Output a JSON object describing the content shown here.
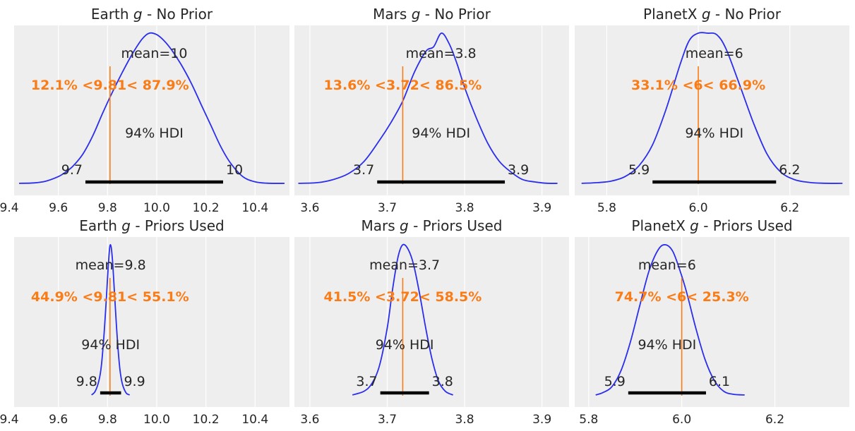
{
  "colors": {
    "kde": "#2a2eec",
    "reference": "#fa7c17",
    "hdi": "#000000",
    "panel_background": "#eeeeee"
  },
  "chart_data": [
    {
      "type": "area",
      "title": "Earth g - No Prior",
      "title_parts": {
        "planet": "Earth",
        "symbol": "g",
        "suffix": "- No Prior"
      },
      "xlim": [
        9.42,
        10.54
      ],
      "xticks": [
        9.4,
        9.6,
        9.8,
        10.0,
        10.2,
        10.4
      ],
      "xtick_labels": [
        "9.4",
        "9.6",
        "9.8",
        "10.0",
        "10.2",
        "10.4"
      ],
      "kde": {
        "x": [
          9.44,
          9.5,
          9.55,
          9.6,
          9.63,
          9.66,
          9.7,
          9.74,
          9.78,
          9.82,
          9.86,
          9.9,
          9.94,
          9.97,
          10.0,
          10.03,
          10.06,
          10.1,
          10.14,
          10.18,
          10.22,
          10.26,
          10.3,
          10.35,
          10.4,
          10.45,
          10.52
        ],
        "y": [
          0.005,
          0.008,
          0.02,
          0.05,
          0.08,
          0.12,
          0.2,
          0.32,
          0.47,
          0.61,
          0.74,
          0.86,
          0.96,
          1.0,
          0.99,
          0.95,
          0.89,
          0.79,
          0.67,
          0.53,
          0.39,
          0.25,
          0.14,
          0.05,
          0.015,
          0.006,
          0.005
        ]
      },
      "mean_label": "mean=10",
      "reference_value": 9.81,
      "reference_label": "12.1% <9.81< 87.9%",
      "hdi": {
        "label": "94% HDI",
        "low": 9.71,
        "high": 10.27,
        "low_label": "9.7",
        "high_label": "10"
      }
    },
    {
      "type": "area",
      "title": "Mars g - No Prior",
      "title_parts": {
        "planet": "Mars",
        "symbol": "g",
        "suffix": "- No Prior"
      },
      "xlim": [
        3.58,
        3.935
      ],
      "xticks": [
        3.6,
        3.7,
        3.8,
        3.9
      ],
      "xtick_labels": [
        "3.6",
        "3.7",
        "3.8",
        "3.9"
      ],
      "kde": {
        "x": [
          3.585,
          3.61,
          3.63,
          3.65,
          3.67,
          3.69,
          3.705,
          3.72,
          3.735,
          3.75,
          3.76,
          3.77,
          3.78,
          3.79,
          3.8,
          3.815,
          3.83,
          3.845,
          3.86,
          3.875,
          3.89,
          3.905,
          3.92
        ],
        "y": [
          0.005,
          0.01,
          0.03,
          0.07,
          0.15,
          0.29,
          0.41,
          0.55,
          0.74,
          0.88,
          0.91,
          1.0,
          0.93,
          0.8,
          0.64,
          0.44,
          0.27,
          0.15,
          0.08,
          0.03,
          0.015,
          0.006,
          0.005
        ]
      },
      "mean_label": "mean=3.8",
      "reference_value": 3.72,
      "reference_label": "13.6% <3.72< 86.5%",
      "hdi": {
        "label": "94% HDI",
        "low": 3.687,
        "high": 3.852,
        "low_label": "3.7",
        "high_label": "3.9"
      }
    },
    {
      "type": "area",
      "title": "PlanetX g - No Prior",
      "title_parts": {
        "planet": "PlanetX",
        "symbol": "g",
        "suffix": "- No Prior"
      },
      "xlim": [
        5.73,
        6.33
      ],
      "xticks": [
        5.8,
        6.0,
        6.2
      ],
      "xtick_labels": [
        "5.8",
        "6.0",
        "6.2"
      ],
      "kde": {
        "x": [
          5.745,
          5.78,
          5.81,
          5.84,
          5.87,
          5.9,
          5.93,
          5.96,
          5.98,
          6.0,
          6.02,
          6.04,
          6.06,
          6.09,
          6.12,
          6.15,
          6.18,
          6.21,
          6.24,
          6.27,
          6.315
        ],
        "y": [
          0.005,
          0.01,
          0.02,
          0.05,
          0.12,
          0.26,
          0.5,
          0.79,
          0.95,
          1.0,
          1.0,
          0.99,
          0.9,
          0.66,
          0.41,
          0.2,
          0.08,
          0.03,
          0.012,
          0.006,
          0.005
        ]
      },
      "mean_label": "mean=6",
      "reference_value": 6.0,
      "reference_label": "33.1% <6< 66.9%",
      "hdi": {
        "label": "94% HDI",
        "low": 5.9,
        "high": 6.17,
        "low_label": "5.9",
        "high_label": "6.2"
      }
    },
    {
      "type": "area",
      "title": "Earth g - Priors Used",
      "title_parts": {
        "planet": "Earth",
        "symbol": "g",
        "suffix": "- Priors Used"
      },
      "xlim": [
        9.42,
        10.54
      ],
      "xticks": [
        9.4,
        9.6,
        9.8,
        10.0,
        10.2,
        10.4
      ],
      "xtick_labels": [
        "9.4",
        "9.6",
        "9.8",
        "10.0",
        "10.2",
        "10.4"
      ],
      "kde": {
        "x": [
          9.735,
          9.75,
          9.765,
          9.775,
          9.785,
          9.795,
          9.805,
          9.812,
          9.82,
          9.83,
          9.84,
          9.85,
          9.86,
          9.875,
          9.89
        ],
        "y": [
          0.005,
          0.03,
          0.1,
          0.2,
          0.39,
          0.64,
          0.91,
          1.0,
          0.9,
          0.63,
          0.37,
          0.18,
          0.08,
          0.02,
          0.005
        ]
      },
      "mean_label": "mean=9.8",
      "reference_value": 9.81,
      "reference_label": "44.9% <9.81< 55.1%",
      "hdi": {
        "label": "94% HDI",
        "low": 9.77,
        "high": 9.855,
        "low_label": "9.8",
        "high_label": "9.9"
      }
    },
    {
      "type": "area",
      "title": "Mars g - Priors Used",
      "title_parts": {
        "planet": "Mars",
        "symbol": "g",
        "suffix": "- Priors Used"
      },
      "xlim": [
        3.58,
        3.935
      ],
      "xticks": [
        3.6,
        3.7,
        3.8,
        3.9
      ],
      "xtick_labels": [
        "3.6",
        "3.7",
        "3.8",
        "3.9"
      ],
      "kde": {
        "x": [
          3.655,
          3.67,
          3.68,
          3.69,
          3.7,
          3.707,
          3.714,
          3.72,
          3.727,
          3.734,
          3.742,
          3.75,
          3.758,
          3.766,
          3.775,
          3.785
        ],
        "y": [
          0.005,
          0.03,
          0.08,
          0.2,
          0.45,
          0.71,
          0.92,
          1.0,
          0.97,
          0.87,
          0.67,
          0.44,
          0.24,
          0.1,
          0.03,
          0.005
        ]
      },
      "mean_label": "mean=3.7",
      "reference_value": 3.72,
      "reference_label": "41.5% <3.72< 58.5%",
      "hdi": {
        "label": "94% HDI",
        "low": 3.691,
        "high": 3.754,
        "low_label": "3.7",
        "high_label": "3.8"
      }
    },
    {
      "type": "area",
      "title": "PlanetX g - Priors Used",
      "title_parts": {
        "planet": "PlanetX",
        "symbol": "g",
        "suffix": "- Priors Used"
      },
      "xlim": [
        5.77,
        6.36
      ],
      "xticks": [
        5.8,
        6.0,
        6.2
      ],
      "xtick_labels": [
        "5.8",
        "6.0",
        "6.2"
      ],
      "kde": {
        "x": [
          5.815,
          5.83,
          5.85,
          5.87,
          5.89,
          5.91,
          5.93,
          5.95,
          5.965,
          5.98,
          5.995,
          6.01,
          6.03,
          6.05,
          6.07,
          6.09,
          6.11,
          6.135
        ],
        "y": [
          0.005,
          0.02,
          0.06,
          0.17,
          0.36,
          0.6,
          0.83,
          0.97,
          1.0,
          0.96,
          0.84,
          0.69,
          0.45,
          0.24,
          0.1,
          0.03,
          0.01,
          0.005
        ]
      },
      "mean_label": "mean=6",
      "reference_value": 6.0,
      "reference_label": "74.7% <6< 25.3%",
      "hdi": {
        "label": "94% HDI",
        "low": 5.885,
        "high": 6.052,
        "low_label": "5.9",
        "high_label": "6.1"
      }
    }
  ]
}
